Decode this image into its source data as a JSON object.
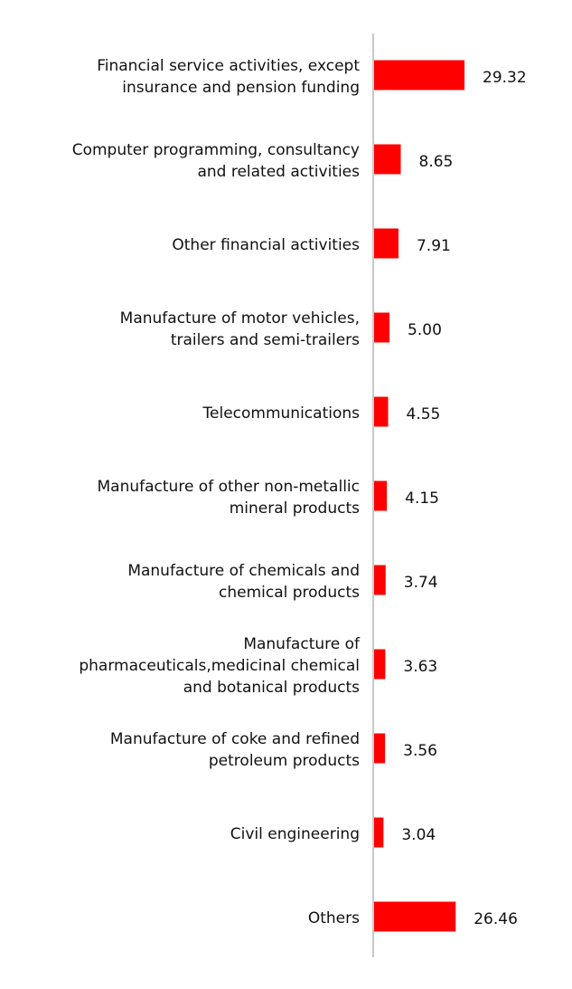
{
  "chart_data": {
    "type": "hbar",
    "categories": [
      [
        "Financial service activities, except",
        "insurance and pension funding"
      ],
      [
        "Computer programming, consultancy",
        "and related activities"
      ],
      [
        "Other financial activities"
      ],
      [
        "Manufacture of motor vehicles,",
        "trailers and semi-trailers"
      ],
      [
        "Telecommunications"
      ],
      [
        "Manufacture of other non-metallic",
        "mineral products"
      ],
      [
        "Manufacture of chemicals and",
        "chemical products"
      ],
      [
        "Manufacture of",
        "pharmaceuticals,medicinal chemical",
        "and botanical products"
      ],
      [
        "Manufacture of coke and refined",
        "petroleum products"
      ],
      [
        "Civil engineering"
      ],
      [
        "Others"
      ]
    ],
    "values": [
      29.32,
      8.65,
      7.91,
      5.0,
      4.55,
      4.15,
      3.74,
      3.63,
      3.56,
      3.04,
      26.46
    ],
    "value_labels": [
      "29.32",
      "8.65",
      "7.91",
      "5.00",
      "4.55",
      "4.15",
      "3.74",
      "3.63",
      "3.56",
      "3.04",
      "26.46"
    ],
    "color": "#ff0000"
  }
}
